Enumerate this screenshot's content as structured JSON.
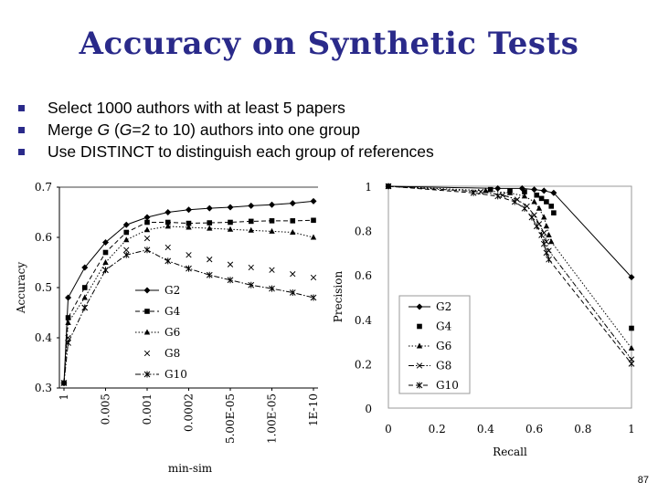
{
  "slide": {
    "title": "Accuracy on Synthetic Tests",
    "bullets": [
      [
        "Select 1000 authors with at least 5 papers"
      ],
      [
        "Merge ",
        {
          "t": "G",
          "i": true
        },
        " (",
        {
          "t": "G",
          "i": true
        },
        "=2 to 10) authors into one group"
      ],
      [
        "Use DISTINCT to distinguish each group of references"
      ]
    ],
    "page_number": "87",
    "colors": {
      "title": "#2a2a8a",
      "bullet": "#2a2a8a"
    }
  },
  "chart_data": [
    {
      "type": "line",
      "xlabel": "min-sim",
      "ylabel": "Accuracy",
      "categories": [
        "1",
        "0.005",
        "0.001",
        "0.0002",
        "5.00E-05",
        "1.00E-05",
        "1E-10"
      ],
      "ylim": [
        0.3,
        0.7
      ],
      "yticks": [
        "0.3",
        "0.4",
        "0.5",
        "0.6",
        "0.7"
      ],
      "grid": false,
      "legend": "bottom-left",
      "series": [
        {
          "name": "G2",
          "marker": "diamond",
          "line": "solid",
          "points": [
            [
              0,
              0.31
            ],
            [
              0.1,
              0.48
            ],
            [
              0.5,
              0.54
            ],
            [
              1,
              0.59
            ],
            [
              1.5,
              0.625
            ],
            [
              2,
              0.64
            ],
            [
              2.5,
              0.65
            ],
            [
              3,
              0.655
            ],
            [
              3.5,
              0.658
            ],
            [
              4,
              0.66
            ],
            [
              4.5,
              0.663
            ],
            [
              5,
              0.665
            ],
            [
              5.5,
              0.668
            ],
            [
              6,
              0.672
            ]
          ]
        },
        {
          "name": "G4",
          "marker": "square",
          "line": "dashed",
          "points": [
            [
              0,
              0.31
            ],
            [
              0.1,
              0.44
            ],
            [
              0.5,
              0.5
            ],
            [
              1,
              0.57
            ],
            [
              1.5,
              0.61
            ],
            [
              2,
              0.63
            ],
            [
              2.5,
              0.63
            ],
            [
              3,
              0.628
            ],
            [
              3.5,
              0.629
            ],
            [
              4,
              0.63
            ],
            [
              4.5,
              0.632
            ],
            [
              5,
              0.633
            ],
            [
              5.5,
              0.633
            ],
            [
              6,
              0.634
            ]
          ]
        },
        {
          "name": "G6",
          "marker": "triangle",
          "line": "dotted",
          "points": [
            [
              0,
              0.31
            ],
            [
              0.1,
              0.43
            ],
            [
              0.5,
              0.48
            ],
            [
              1,
              0.55
            ],
            [
              1.5,
              0.595
            ],
            [
              2,
              0.615
            ],
            [
              2.5,
              0.622
            ],
            [
              3,
              0.62
            ],
            [
              3.5,
              0.618
            ],
            [
              4,
              0.616
            ],
            [
              4.5,
              0.614
            ],
            [
              5,
              0.612
            ],
            [
              5.5,
              0.61
            ],
            [
              6,
              0.6
            ]
          ]
        },
        {
          "name": "G8",
          "marker": "x",
          "line": "none",
          "points": [
            [
              0,
              0.31
            ],
            [
              0.1,
              0.4
            ],
            [
              0.5,
              0.46
            ],
            [
              1,
              0.535
            ],
            [
              1.5,
              0.575
            ],
            [
              2,
              0.598
            ],
            [
              2.5,
              0.58
            ],
            [
              3,
              0.565
            ],
            [
              3.5,
              0.556
            ],
            [
              4,
              0.546
            ],
            [
              4.5,
              0.54
            ],
            [
              5,
              0.535
            ],
            [
              5.5,
              0.527
            ],
            [
              6,
              0.52
            ]
          ]
        },
        {
          "name": "G10",
          "marker": "star",
          "line": "dashdot",
          "points": [
            [
              0,
              0.31
            ],
            [
              0.1,
              0.39
            ],
            [
              0.5,
              0.46
            ],
            [
              1,
              0.535
            ],
            [
              1.5,
              0.565
            ],
            [
              2,
              0.575
            ],
            [
              2.5,
              0.553
            ],
            [
              3,
              0.538
            ],
            [
              3.5,
              0.525
            ],
            [
              4,
              0.515
            ],
            [
              4.5,
              0.505
            ],
            [
              5,
              0.498
            ],
            [
              5.5,
              0.49
            ],
            [
              6,
              0.48
            ]
          ]
        }
      ]
    },
    {
      "type": "line",
      "xlabel": "Recall",
      "ylabel": "Precision",
      "xlim": [
        0,
        1
      ],
      "ylim": [
        0,
        1
      ],
      "xticks": [
        "0",
        "0.2",
        "0.4",
        "0.6",
        "0.8",
        "1"
      ],
      "yticks": [
        "0",
        "0.2",
        "0.4",
        "0.6",
        "0.8",
        "1"
      ],
      "grid": false,
      "legend": "bottom-left",
      "series": [
        {
          "name": "G2",
          "marker": "diamond",
          "line": "solid",
          "points": [
            [
              0,
              1
            ],
            [
              0.45,
              0.99
            ],
            [
              0.55,
              0.99
            ],
            [
              0.6,
              0.985
            ],
            [
              0.64,
              0.98
            ],
            [
              0.68,
              0.97
            ],
            [
              1,
              0.59
            ]
          ]
        },
        {
          "name": "G4",
          "marker": "square",
          "line": "none",
          "points": [
            [
              0,
              1
            ],
            [
              0.42,
              0.985
            ],
            [
              0.5,
              0.98
            ],
            [
              0.56,
              0.975
            ],
            [
              0.61,
              0.96
            ],
            [
              0.63,
              0.945
            ],
            [
              0.65,
              0.93
            ],
            [
              0.67,
              0.91
            ],
            [
              0.68,
              0.88
            ],
            [
              1,
              0.36
            ]
          ]
        },
        {
          "name": "G6",
          "marker": "triangle",
          "line": "dotted",
          "points": [
            [
              0,
              1
            ],
            [
              0.4,
              0.98
            ],
            [
              0.5,
              0.97
            ],
            [
              0.56,
              0.955
            ],
            [
              0.6,
              0.93
            ],
            [
              0.62,
              0.9
            ],
            [
              0.64,
              0.86
            ],
            [
              0.65,
              0.82
            ],
            [
              0.66,
              0.78
            ],
            [
              0.67,
              0.75
            ],
            [
              1,
              0.27
            ]
          ]
        },
        {
          "name": "G8",
          "marker": "x",
          "line": "dashdot",
          "points": [
            [
              0,
              1
            ],
            [
              0.38,
              0.975
            ],
            [
              0.47,
              0.96
            ],
            [
              0.53,
              0.94
            ],
            [
              0.57,
              0.91
            ],
            [
              0.6,
              0.87
            ],
            [
              0.62,
              0.83
            ],
            [
              0.64,
              0.79
            ],
            [
              0.65,
              0.75
            ],
            [
              0.66,
              0.71
            ],
            [
              1,
              0.22
            ]
          ]
        },
        {
          "name": "G10",
          "marker": "star",
          "line": "dashed",
          "points": [
            [
              0,
              1
            ],
            [
              0.35,
              0.97
            ],
            [
              0.45,
              0.955
            ],
            [
              0.52,
              0.93
            ],
            [
              0.56,
              0.9
            ],
            [
              0.59,
              0.86
            ],
            [
              0.61,
              0.82
            ],
            [
              0.63,
              0.78
            ],
            [
              0.64,
              0.74
            ],
            [
              0.65,
              0.7
            ],
            [
              0.66,
              0.67
            ],
            [
              1,
              0.2
            ]
          ]
        }
      ]
    }
  ]
}
